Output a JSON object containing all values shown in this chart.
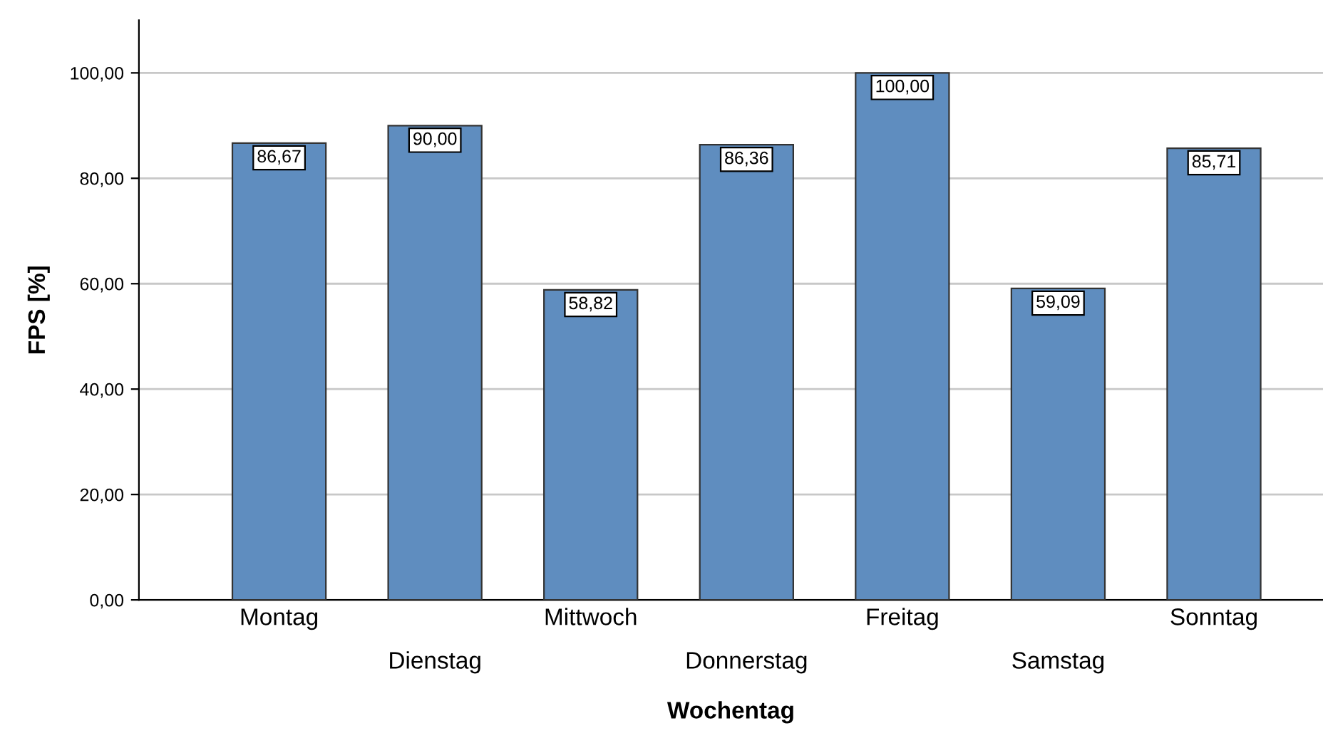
{
  "chart_data": {
    "type": "bar",
    "xlabel": "Wochentag",
    "ylabel": "FPS [%]",
    "categories": [
      "Montag",
      "Dienstag",
      "Mittwoch",
      "Donnerstag",
      "Freitag",
      "Samstag",
      "Sonntag"
    ],
    "values": [
      86.67,
      90.0,
      58.82,
      86.36,
      100.0,
      59.09,
      85.71
    ],
    "value_labels": [
      "86,67",
      "90,00",
      "58,82",
      "86,36",
      "100,00",
      "59,09",
      "85,71"
    ],
    "color": "#5f8dbf",
    "ylim": [
      0,
      110
    ],
    "yticks": [
      {
        "value": 0,
        "label": "0,00"
      },
      {
        "value": 20,
        "label": "20,00"
      },
      {
        "value": 40,
        "label": "40,00"
      },
      {
        "value": 60,
        "label": "60,00"
      },
      {
        "value": 80,
        "label": "80,00"
      },
      {
        "value": 100,
        "label": "100,00"
      }
    ],
    "grid": "y"
  }
}
